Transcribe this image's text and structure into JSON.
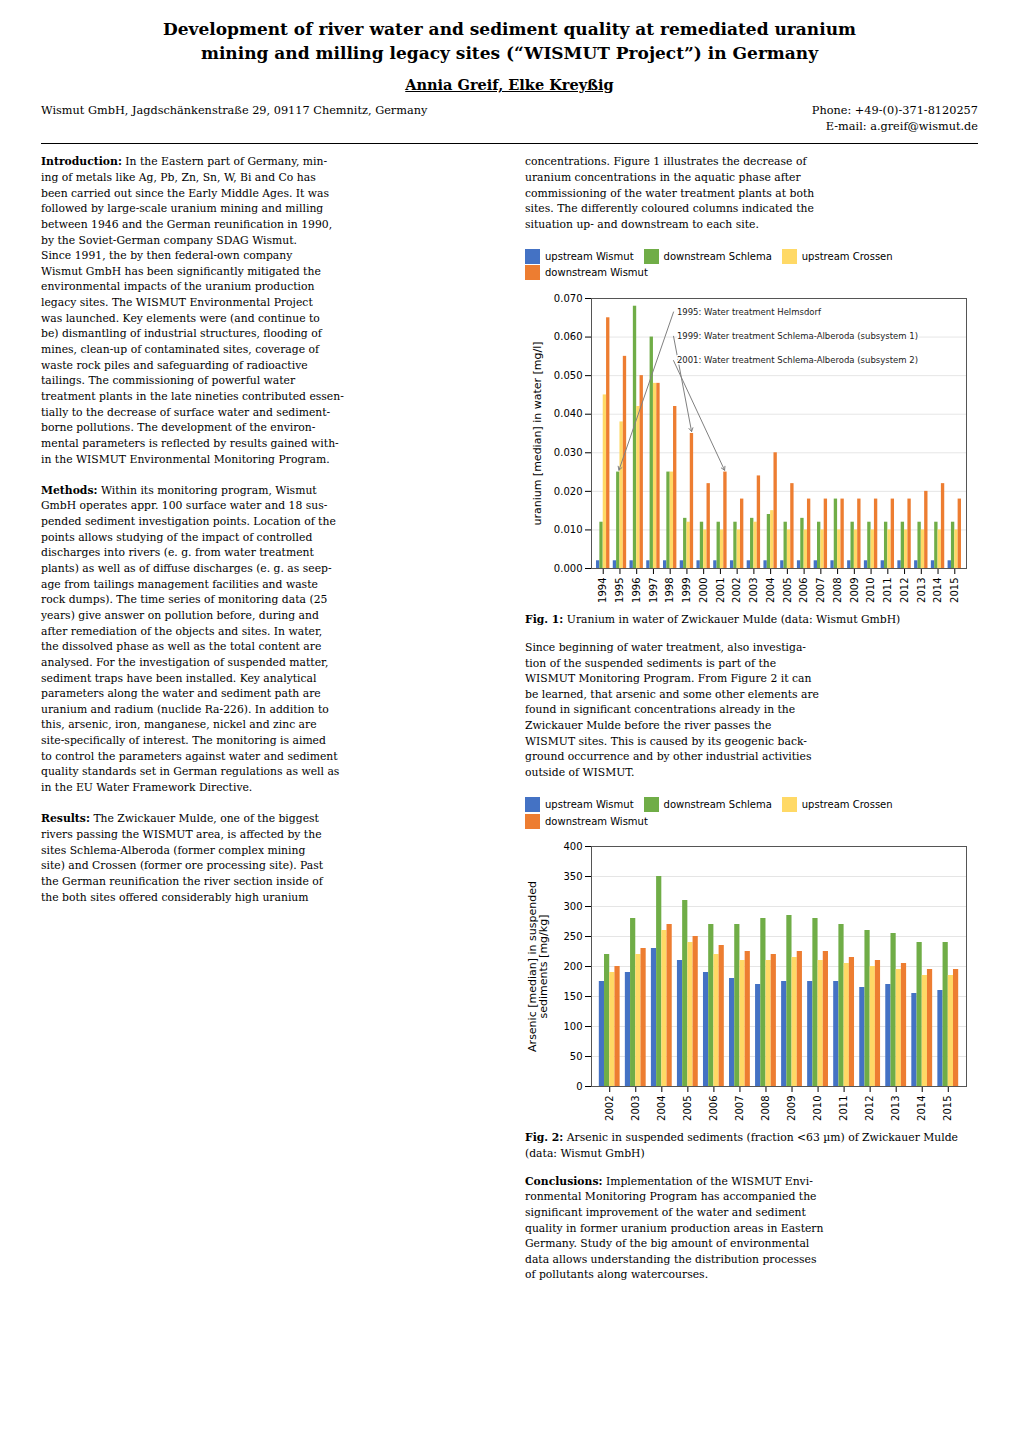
{
  "title": [
    "Development of river water and sediment quality at remediated uranium",
    "mining and milling legacy sites (“WISMUT Project”) in Germany"
  ],
  "authors": "Annia Greif, Elke Kreyßig",
  "affiliations": {
    "left": "Wismut GmbH, Jagdschänkenstraße 29, 09117 Chemnitz, Germany",
    "right": [
      "Phone: +49-(0)-371-8120257",
      "E-mail: a.greif@wismut.de"
    ]
  },
  "text_left": [
    {
      "heading": "Introduction:",
      "lines": [
        "In the Eastern part of Germany, min-",
        "ing of metals like Ag, Pb, Zn, Sn, W, Bi and Co has",
        "been carried out since the Early Middle Ages. It was",
        "followed by large-scale uranium mining and milling",
        "between 1946 and the German reunification in 1990,",
        "by the Soviet-German company SDAG Wismut.",
        "Since 1991, the by then federal-own company",
        "Wismut GmbH has been significantly mitigated the",
        "environmental impacts of the uranium production",
        "legacy sites. The WISMUT Environmental Project",
        "was launched. Key elements were (and continue to",
        "be) dismantling of industrial structures, flooding of",
        "mines, clean-up of contaminated sites, coverage of",
        "waste rock piles and safeguarding of radioactive",
        "tailings. The commissioning of powerful water",
        "treatment plants in the late nineties contributed essen-",
        "tially to the decrease of surface water and sediment-",
        "borne pollutions. The development of the environ-",
        "mental parameters is reflected by results gained with-",
        "in the WISMUT Environmental Monitoring Program."
      ]
    },
    {
      "heading": "Methods:",
      "lines": [
        "Within its monitoring program, Wismut",
        "GmbH operates appr. 100 surface water and 18 sus-",
        "pended sediment investigation points. Location of the",
        "points allows studying of the impact of controlled",
        "discharges into rivers (e. g. from water treatment",
        "plants) as well as of diffuse discharges (e. g. as seep-",
        "age from tailings management facilities and waste",
        "rock dumps). The time series of monitoring data (25",
        "years) give answer on pollution before, during and",
        "after remediation of the objects and sites. In water,",
        "the dissolved phase as well as the total content are",
        "analysed. For the investigation of suspended matter,",
        "sediment traps have been installed. Key analytical",
        "parameters along the water and sediment path are",
        "uranium and radium (nuclide Ra-226). In addition to",
        "this, arsenic, iron, manganese, nickel and zinc are",
        "site-specifically of interest. The monitoring is aimed",
        "to control the parameters against water and sediment",
        "quality standards set in German regulations as well as",
        "in the EU Water Framework Directive."
      ]
    },
    {
      "heading": "Results:",
      "lines": [
        "The Zwickauer Mulde, one of the biggest",
        "rivers passing the WISMUT area, is affected by the",
        "sites Schlema-Alberoda (former complex mining",
        "site) and Crossen (former ore processing site). Past",
        "the German reunification the river section inside of",
        "the both sites offered considerably high uranium"
      ]
    }
  ],
  "text_right": [
    {
      "lines": [
        "concentrations. Figure 1 illustrates the decrease of",
        "uranium concentrations in the aquatic phase after",
        "commissioning of the water treatment plants at both",
        "sites. The differently coloured columns indicated the",
        "situation up- and downstream to each site."
      ]
    },
    {
      "lines": [
        "Since beginning of water treatment, also investiga-",
        "tion of the suspended sediments is part of the",
        "WISMUT Monitoring Program. From Figure 2 it can",
        "be learned, that arsenic and some other elements are",
        "found in significant concentrations already in the",
        "Zwickauer Mulde before the river passes the",
        "WISMUT sites. This is caused by its geogenic back-",
        "ground occurrence and by other industrial activities",
        "outside of WISMUT."
      ]
    },
    {
      "heading": "Conclusions:",
      "lines": [
        "Implementation of the WISMUT Envi-",
        "ronmental Monitoring Program has accompanied the",
        "significant improvement of the water and sediment",
        "quality in former uranium production areas in Eastern",
        "Germany. Study of the big amount of environmental",
        "data allows understanding the distribution processes",
        "of pollutants along watercourses."
      ]
    }
  ],
  "chart_data": [
    {
      "type": "bar",
      "caption": {
        "label": "Fig. 1:",
        "text": "Uranium in water of Zwickauer Mulde (data: Wismut GmbH)"
      },
      "ylabel": "uranium [median] in water [mg/l]",
      "categories": [
        "1994",
        "1995",
        "1996",
        "1997",
        "1998",
        "1999",
        "2000",
        "2001",
        "2002",
        "2003",
        "2004",
        "2005",
        "2006",
        "2007",
        "2008",
        "2009",
        "2010",
        "2011",
        "2012",
        "2013",
        "2014",
        "2015"
      ],
      "series": [
        {
          "name": "upstream Wismut",
          "color": "#4472C4",
          "values": [
            0.002,
            0.002,
            0.002,
            0.002,
            0.002,
            0.002,
            0.002,
            0.002,
            0.002,
            0.002,
            0.002,
            0.002,
            0.002,
            0.002,
            0.002,
            0.002,
            0.002,
            0.002,
            0.002,
            0.002,
            0.002,
            0.002
          ]
        },
        {
          "name": "downstream Schlema",
          "color": "#70AD47",
          "values": [
            0.012,
            0.025,
            0.068,
            0.06,
            0.025,
            0.013,
            0.012,
            0.012,
            0.012,
            0.013,
            0.014,
            0.012,
            0.013,
            0.012,
            0.018,
            0.012,
            0.012,
            0.012,
            0.012,
            0.012,
            0.012,
            0.012
          ]
        },
        {
          "name": "upstream Crossen",
          "color": "#FFD966",
          "values": [
            0.045,
            0.038,
            0.042,
            0.048,
            0.025,
            0.012,
            0.01,
            0.01,
            0.01,
            0.012,
            0.015,
            0.01,
            0.01,
            0.01,
            0.01,
            0.01,
            0.01,
            0.01,
            0.01,
            0.01,
            0.01,
            0.01
          ]
        },
        {
          "name": "downstream Wismut",
          "color": "#ED7D31",
          "values": [
            0.065,
            0.055,
            0.05,
            0.048,
            0.042,
            0.035,
            0.022,
            0.025,
            0.018,
            0.024,
            0.03,
            0.022,
            0.018,
            0.018,
            0.018,
            0.018,
            0.018,
            0.018,
            0.018,
            0.02,
            0.022,
            0.018
          ]
        }
      ],
      "ylim": [
        0,
        0.07
      ],
      "yticks": [
        {
          "value": 0,
          "label": "0.000"
        },
        {
          "value": 0.01,
          "label": "0.010"
        },
        {
          "value": 0.02,
          "label": "0.020"
        },
        {
          "value": 0.03,
          "label": "0.030"
        },
        {
          "value": 0.04,
          "label": "0.040"
        },
        {
          "value": 0.05,
          "label": "0.050"
        },
        {
          "value": 0.06,
          "label": "0.060"
        },
        {
          "value": 0.07,
          "label": "0.070"
        }
      ],
      "grid": true,
      "legend": "upper right",
      "annotations": [
        {
          "text": "1995: Water treatment Helmsdorf",
          "x": "1995",
          "series": "downstream Schlema"
        },
        {
          "text": "1999: Water treatment Schlema-Alberoda (subsystem 1)",
          "x": "1999",
          "series": "downstream Wismut"
        },
        {
          "text": "2001: Water treatment Schlema-Alberoda (subsystem 2)",
          "x": "2001",
          "series": "downstream Wismut"
        }
      ]
    },
    {
      "type": "bar",
      "caption": {
        "label": "Fig. 2:",
        "text": "Arsenic in suspended sediments (fraction <63 µm) of Zwickauer Mulde (data: Wismut GmbH)"
      },
      "ylabel": "Arsenic [median] in suspended\nsediments [mg/kg]",
      "categories": [
        "2002",
        "2003",
        "2004",
        "2005",
        "2006",
        "2007",
        "2008",
        "2009",
        "2010",
        "2011",
        "2012",
        "2013",
        "2014",
        "2015"
      ],
      "series": [
        {
          "name": "upstream Wismut",
          "color": "#4472C4",
          "values": [
            175,
            190,
            230,
            210,
            190,
            180,
            170,
            175,
            175,
            175,
            165,
            170,
            155,
            160
          ]
        },
        {
          "name": "downstream Schlema",
          "color": "#70AD47",
          "values": [
            220,
            280,
            350,
            310,
            270,
            270,
            280,
            285,
            280,
            270,
            260,
            255,
            240,
            240
          ]
        },
        {
          "name": "upstream Crossen",
          "color": "#FFD966",
          "values": [
            190,
            220,
            260,
            240,
            220,
            210,
            210,
            215,
            210,
            205,
            200,
            195,
            185,
            185
          ]
        },
        {
          "name": "downstream Wismut",
          "color": "#ED7D31",
          "values": [
            200,
            230,
            270,
            250,
            235,
            225,
            220,
            225,
            225,
            215,
            210,
            205,
            195,
            195
          ]
        }
      ],
      "ylim": [
        0,
        400
      ],
      "yticks": [
        0,
        50,
        100,
        150,
        200,
        250,
        300,
        350,
        400
      ],
      "grid": true,
      "legend": "upper right"
    }
  ]
}
